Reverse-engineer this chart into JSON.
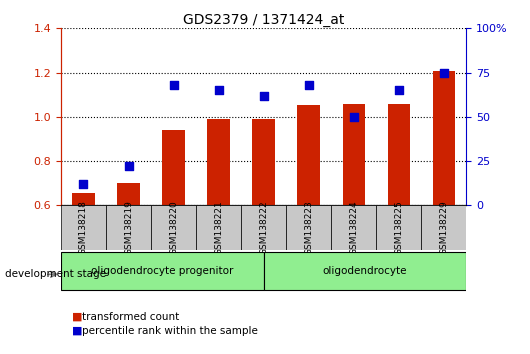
{
  "title": "GDS2379 / 1371424_at",
  "samples": [
    "GSM138218",
    "GSM138219",
    "GSM138220",
    "GSM138221",
    "GSM138222",
    "GSM138223",
    "GSM138224",
    "GSM138225",
    "GSM138229"
  ],
  "transformed_count": [
    0.655,
    0.7,
    0.94,
    0.99,
    0.99,
    1.055,
    1.06,
    1.06,
    1.205
  ],
  "percentile_rank": [
    12,
    22,
    68,
    65,
    62,
    68,
    50,
    65,
    75
  ],
  "ylim_left": [
    0.6,
    1.4
  ],
  "ylim_right": [
    0,
    100
  ],
  "yticks_left": [
    0.6,
    0.8,
    1.0,
    1.2,
    1.4
  ],
  "yticks_right": [
    0,
    25,
    50,
    75,
    100
  ],
  "ytick_right_labels": [
    "0",
    "25",
    "50",
    "75",
    "100%"
  ],
  "group1_label": "oligodendrocyte progenitor",
  "group1_samples": 5,
  "group2_label": "oligodendrocyte",
  "group2_samples": 4,
  "group_color": "#90EE90",
  "group_divider": 4.5,
  "bar_color": "#CC2200",
  "dot_color": "#0000CC",
  "bar_width": 0.5,
  "dot_size": 30,
  "legend_label_bar": "transformed count",
  "legend_label_dot": "percentile rank within the sample",
  "xlabel": "development stage",
  "tick_color_left": "#CC2200",
  "tick_color_right": "#0000CC",
  "background_color": "#ffffff",
  "xticklabel_bg": "#C8C8C8"
}
